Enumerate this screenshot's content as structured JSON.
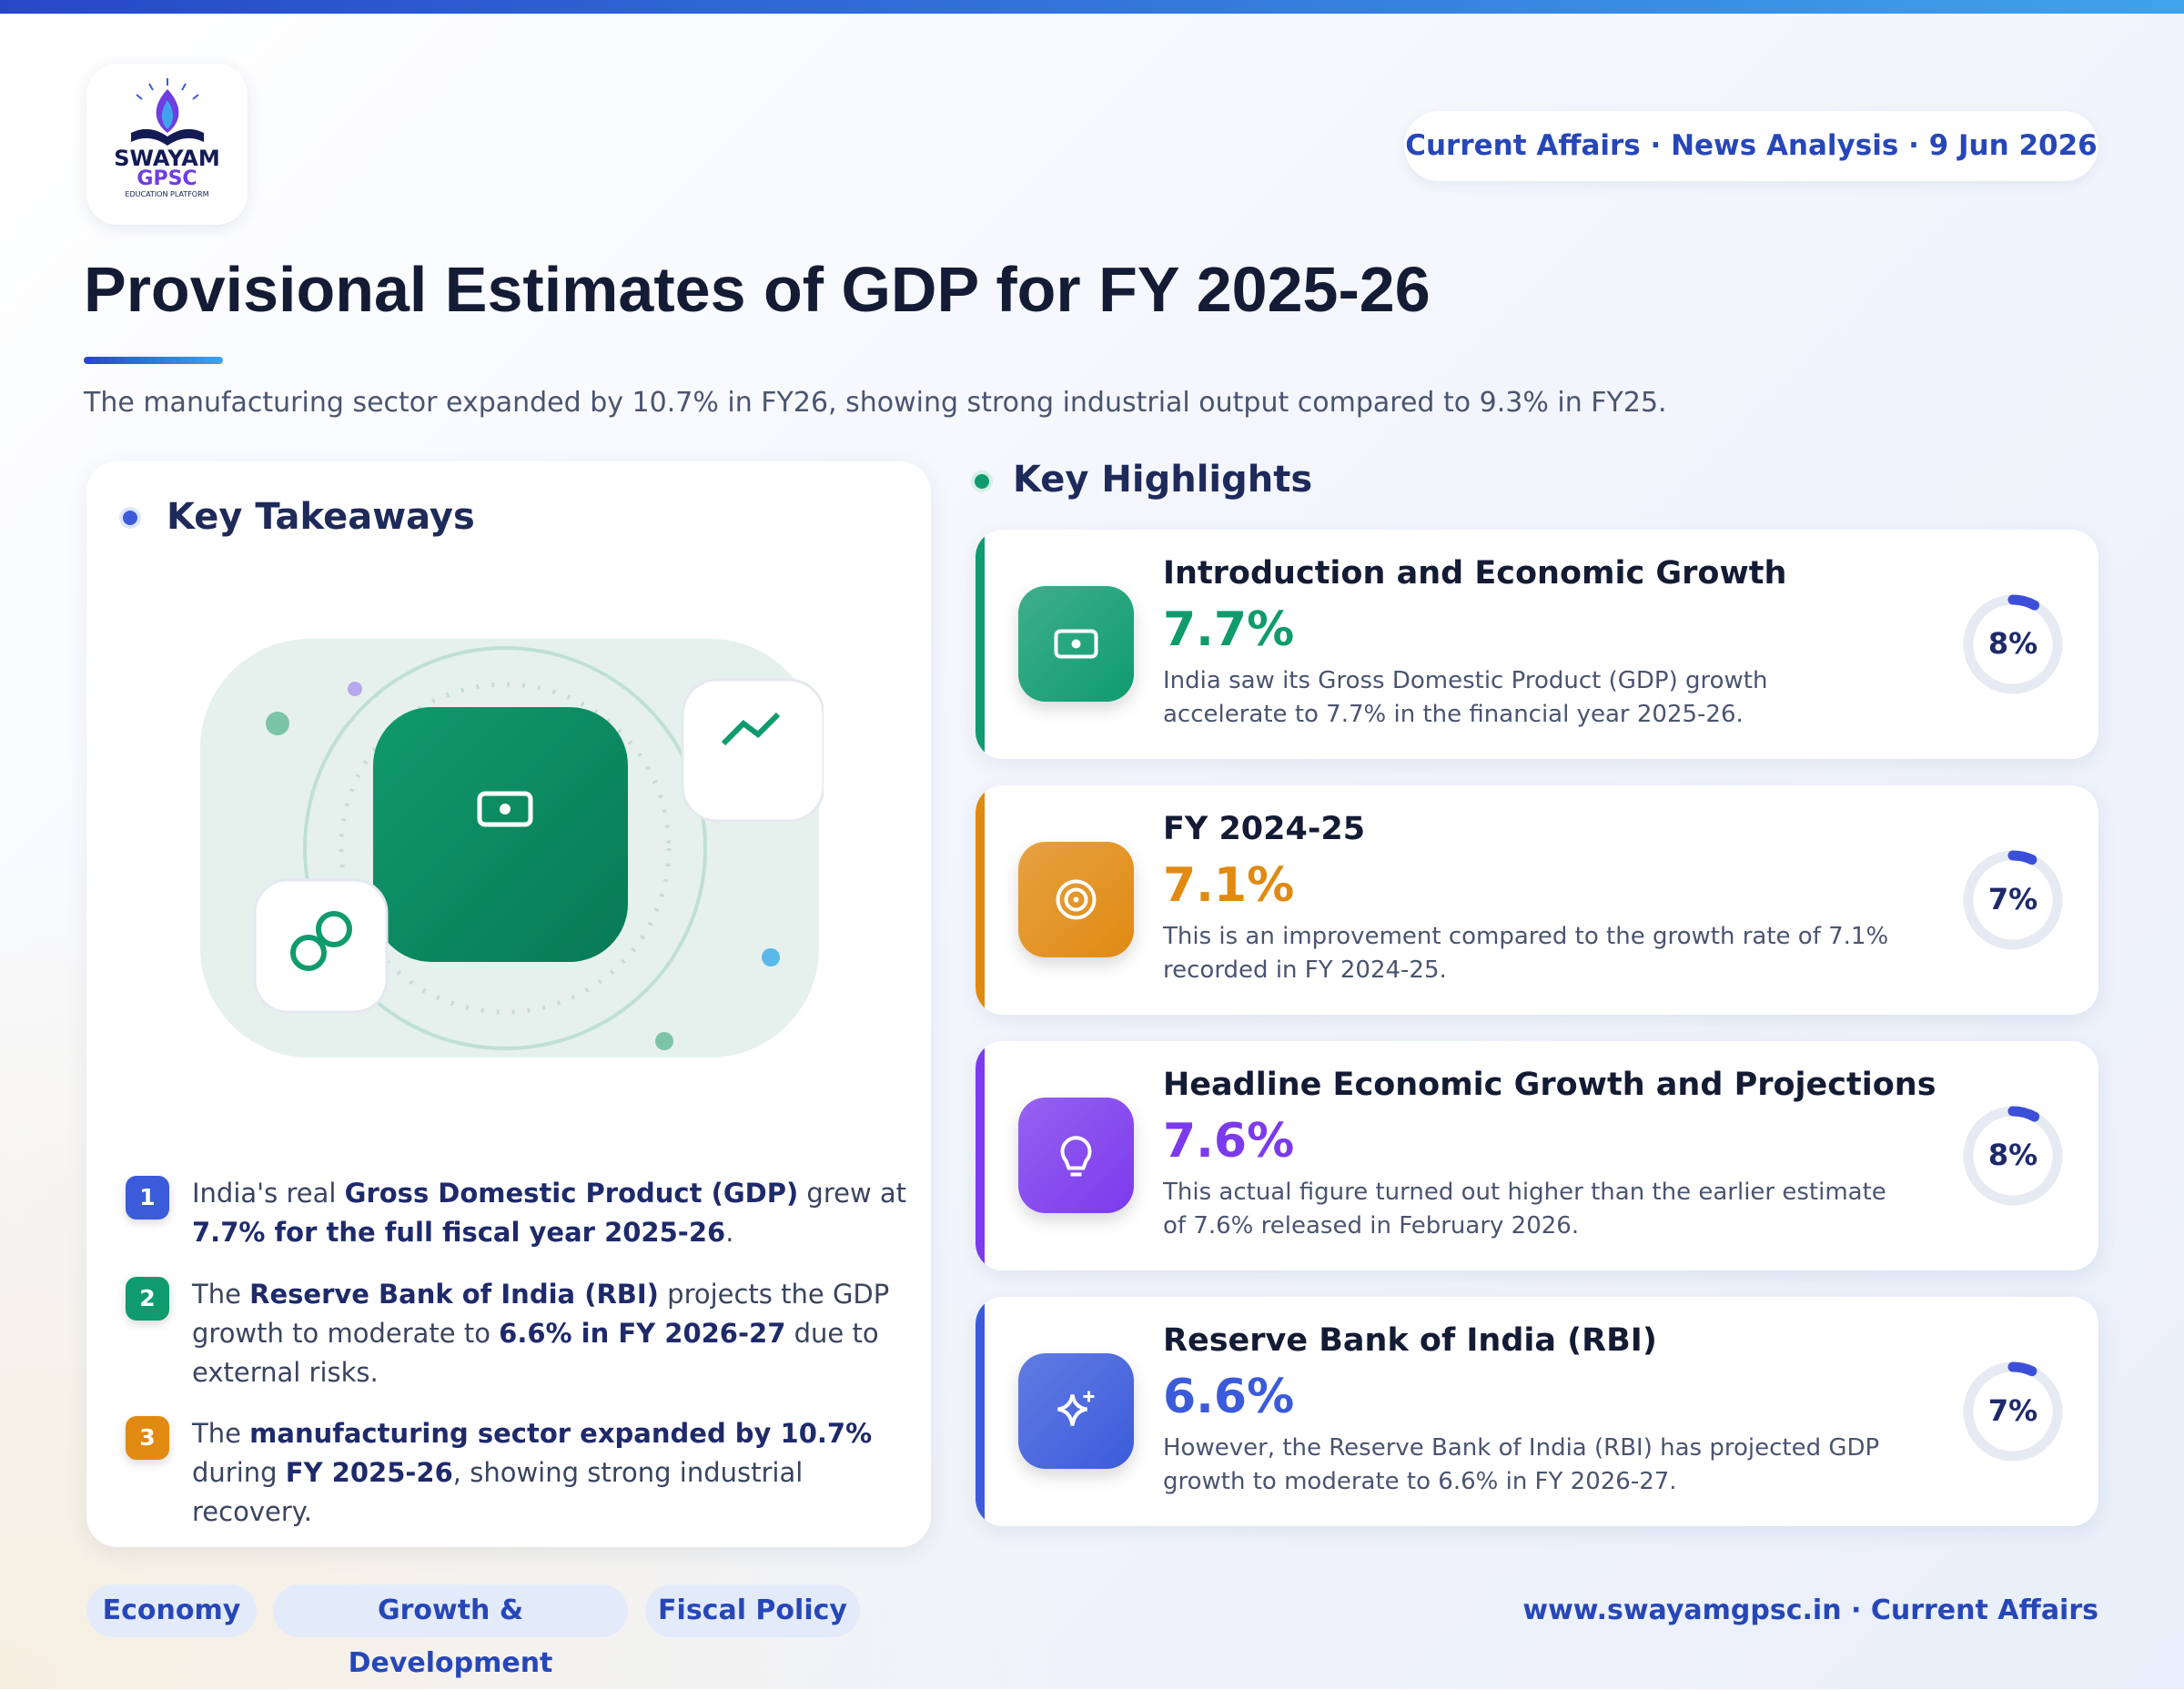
{
  "brand": {
    "name": "SWAYAM",
    "sub": "GPSC",
    "tagline": "EDUCATION PLATFORM"
  },
  "header": {
    "badge": "Current Affairs · News Analysis · 9 Jun 2026",
    "title": "Provisional Estimates of GDP for FY 2025-26",
    "subtitle": "The manufacturing sector expanded by 10.7% in FY26, showing strong industrial output compared to 9.3% in FY25."
  },
  "takeaways": {
    "heading": "Key Takeaways",
    "items": [
      {
        "number": "1",
        "color": "#3b5bdb",
        "segments": [
          {
            "text": "India's real ",
            "bold": false
          },
          {
            "text": "Gross Domestic Product (GDP)",
            "bold": true
          },
          {
            "text": " grew at ",
            "bold": false
          },
          {
            "text": "7.7% for the full fiscal year 2025-26",
            "bold": true
          },
          {
            "text": ".",
            "bold": false
          }
        ]
      },
      {
        "number": "2",
        "color": "#0f9b6e",
        "segments": [
          {
            "text": "The ",
            "bold": false
          },
          {
            "text": "Reserve Bank of India (RBI)",
            "bold": true
          },
          {
            "text": " projects the GDP growth to moderate to ",
            "bold": false
          },
          {
            "text": "6.6% in FY 2026-27",
            "bold": true
          },
          {
            "text": " due to external risks.",
            "bold": false
          }
        ]
      },
      {
        "number": "3",
        "color": "#e08a12",
        "segments": [
          {
            "text": "The ",
            "bold": false
          },
          {
            "text": "manufacturing sector expanded by 10.7%",
            "bold": true
          },
          {
            "text": " during ",
            "bold": false
          },
          {
            "text": "FY 2025-26",
            "bold": true
          },
          {
            "text": ", showing strong industrial recovery.",
            "bold": false
          }
        ]
      }
    ]
  },
  "highlights": {
    "heading": "Key Highlights",
    "cards": [
      {
        "title": "Introduction and Economic Growth",
        "value": "7.7%",
        "color": "#0f9b6e",
        "description": "India saw its Gross Domestic Product (GDP) growth accelerate to 7.7% in the financial year 2025-26.",
        "ring": {
          "value": 8,
          "label": "8%"
        }
      },
      {
        "title": "FY 2024-25",
        "value": "7.1%",
        "color": "#e08a12",
        "description": "This is an improvement compared to the growth rate of 7.1% recorded in FY 2024-25.",
        "ring": {
          "value": 7,
          "label": "7%"
        }
      },
      {
        "title": "Headline Economic Growth and Projections",
        "value": "7.6%",
        "color": "#7c3aed",
        "description": "This actual figure turned out higher than the earlier estimate of 7.6% released in February 2026.",
        "ring": {
          "value": 8,
          "label": "8%"
        }
      },
      {
        "title": "Reserve Bank of India (RBI)",
        "value": "6.6%",
        "color": "#3b5bdb",
        "description": "However, the Reserve Bank of India (RBI) has projected GDP growth to moderate to 6.6% in FY 2026-27.",
        "ring": {
          "value": 7,
          "label": "7%"
        }
      }
    ]
  },
  "footer": {
    "tags": [
      "Economy",
      "Growth & Development",
      "Fiscal Policy"
    ],
    "site": "www.swayamgpsc.in · Current Affairs"
  }
}
